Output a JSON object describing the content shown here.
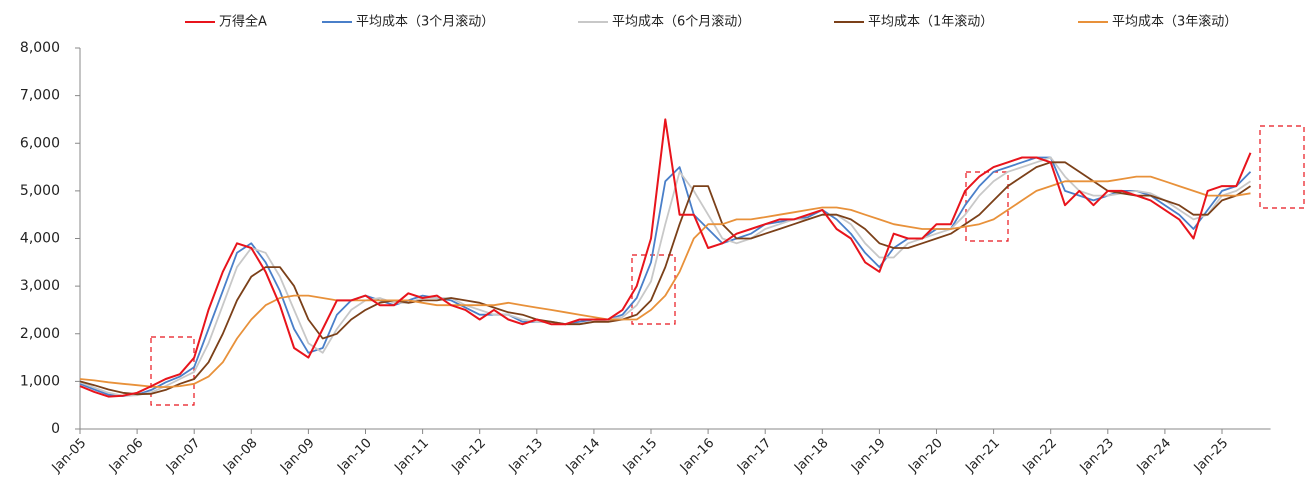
{
  "chart_data": {
    "type": "line",
    "categories": [
      "Jan-05",
      null,
      null,
      null,
      "Jan-06",
      null,
      null,
      null,
      "Jan-07",
      null,
      null,
      null,
      "Jan-08",
      null,
      null,
      null,
      "Jan-09",
      null,
      null,
      null,
      "Jan-10",
      null,
      null,
      null,
      "Jan-11",
      null,
      null,
      null,
      "Jan-12",
      null,
      null,
      null,
      "Jan-13",
      null,
      null,
      null,
      "Jan-14",
      null,
      null,
      null,
      "Jan-15",
      null,
      null,
      null,
      "Jan-16",
      null,
      null,
      null,
      "Jan-17",
      null,
      null,
      null,
      "Jan-18",
      null,
      null,
      null,
      "Jan-19",
      null,
      null,
      null,
      "Jan-20",
      null,
      null,
      null,
      "Jan-21",
      null,
      null,
      null,
      "Jan-22",
      null,
      null,
      null,
      "Jan-23",
      null,
      null,
      null,
      "Jan-24",
      null,
      null,
      null,
      "Jan-25",
      null,
      null
    ],
    "series": [
      {
        "name": "万得全A",
        "color": "#e8141c",
        "values": [
          900,
          780,
          680,
          700,
          760,
          900,
          1050,
          1150,
          1500,
          2500,
          3300,
          3900,
          3800,
          3300,
          2600,
          1700,
          1500,
          2100,
          2700,
          2700,
          2800,
          2600,
          2600,
          2850,
          2750,
          2800,
          2600,
          2500,
          2300,
          2500,
          2300,
          2200,
          2300,
          2200,
          2200,
          2300,
          2300,
          2300,
          2500,
          3000,
          4000,
          6500,
          4500,
          4500,
          3800,
          3900,
          4100,
          4200,
          4300,
          4400,
          4400,
          4500,
          4600,
          4200,
          4000,
          3500,
          3300,
          4100,
          4000,
          4000,
          4300,
          4300,
          5000,
          5300,
          5500,
          5600,
          5700,
          5700,
          5600,
          4700,
          5000,
          4700,
          5000,
          5000,
          4900,
          4800,
          4600,
          4400,
          4000,
          5000,
          5100,
          5100,
          5800
        ]
      },
      {
        "name": "平均成本（3个月滚动）",
        "color": "#4a7fc9",
        "values": [
          950,
          830,
          720,
          690,
          720,
          820,
          980,
          1100,
          1300,
          2100,
          2900,
          3700,
          3900,
          3500,
          2900,
          2100,
          1600,
          1700,
          2400,
          2700,
          2800,
          2700,
          2600,
          2700,
          2800,
          2750,
          2700,
          2550,
          2400,
          2400,
          2400,
          2250,
          2250,
          2250,
          2200,
          2250,
          2300,
          2300,
          2400,
          2750,
          3500,
          5200,
          5500,
          4500,
          4200,
          3900,
          4000,
          4100,
          4300,
          4350,
          4400,
          4450,
          4600,
          4400,
          4100,
          3700,
          3400,
          3800,
          4000,
          4000,
          4200,
          4200,
          4700,
          5100,
          5400,
          5500,
          5600,
          5700,
          5700,
          5000,
          4900,
          4800,
          4900,
          5000,
          5000,
          4900,
          4700,
          4500,
          4200,
          4600,
          5000,
          5100,
          5400
        ]
      },
      {
        "name": "平均成本（6个月滚动）",
        "color": "#c8c8c8",
        "values": [
          980,
          870,
          760,
          700,
          710,
          770,
          900,
          1050,
          1200,
          1800,
          2600,
          3400,
          3800,
          3700,
          3200,
          2500,
          1800,
          1600,
          2100,
          2500,
          2700,
          2750,
          2650,
          2650,
          2750,
          2750,
          2750,
          2600,
          2500,
          2400,
          2400,
          2300,
          2250,
          2250,
          2200,
          2200,
          2250,
          2300,
          2350,
          2600,
          3100,
          4300,
          5400,
          5000,
          4500,
          4000,
          3900,
          4000,
          4200,
          4300,
          4400,
          4400,
          4500,
          4500,
          4300,
          3900,
          3600,
          3600,
          3900,
          4000,
          4100,
          4200,
          4500,
          4900,
          5200,
          5400,
          5500,
          5600,
          5700,
          5300,
          5000,
          4900,
          4900,
          4950,
          5000,
          4950,
          4800,
          4600,
          4400,
          4500,
          4900,
          5000,
          5200
        ]
      },
      {
        "name": "平均成本（1年滚动）",
        "color": "#7b4019",
        "values": [
          1000,
          920,
          830,
          760,
          730,
          740,
          820,
          950,
          1050,
          1400,
          2000,
          2700,
          3200,
          3400,
          3400,
          3000,
          2300,
          1900,
          2000,
          2300,
          2500,
          2650,
          2700,
          2650,
          2700,
          2700,
          2750,
          2700,
          2650,
          2550,
          2450,
          2400,
          2300,
          2250,
          2200,
          2200,
          2250,
          2250,
          2300,
          2400,
          2700,
          3400,
          4300,
          5100,
          5100,
          4300,
          4000,
          4000,
          4100,
          4200,
          4300,
          4400,
          4500,
          4500,
          4400,
          4200,
          3900,
          3800,
          3800,
          3900,
          4000,
          4100,
          4300,
          4500,
          4800,
          5100,
          5300,
          5500,
          5600,
          5600,
          5400,
          5200,
          5000,
          4950,
          4900,
          4900,
          4800,
          4700,
          4500,
          4500,
          4800,
          4900,
          5100
        ]
      },
      {
        "name": "平均成本（3年滚动）",
        "color": "#e8913a",
        "values": [
          1050,
          1020,
          980,
          950,
          920,
          890,
          880,
          900,
          950,
          1100,
          1400,
          1900,
          2300,
          2600,
          2750,
          2800,
          2800,
          2750,
          2700,
          2700,
          2700,
          2700,
          2700,
          2700,
          2650,
          2600,
          2600,
          2600,
          2600,
          2600,
          2650,
          2600,
          2550,
          2500,
          2450,
          2400,
          2350,
          2300,
          2300,
          2300,
          2500,
          2800,
          3300,
          4000,
          4300,
          4300,
          4400,
          4400,
          4450,
          4500,
          4550,
          4600,
          4650,
          4650,
          4600,
          4500,
          4400,
          4300,
          4250,
          4200,
          4200,
          4200,
          4250,
          4300,
          4400,
          4600,
          4800,
          5000,
          5100,
          5200,
          5200,
          5200,
          5200,
          5250,
          5300,
          5300,
          5200,
          5100,
          5000,
          4900,
          4900,
          4900,
          4950
        ]
      }
    ],
    "ylim": [
      0,
      8000
    ],
    "yticks": [
      0,
      {
        "value": 1000,
        "label": "1,000"
      },
      {
        "value": 2000,
        "label": "2,000"
      },
      {
        "value": 3000,
        "label": "3,000"
      },
      {
        "value": 4000,
        "label": "4,000"
      },
      {
        "value": 5000,
        "label": "5,000"
      },
      {
        "value": 6000,
        "label": "6,000"
      },
      {
        "value": 7000,
        "label": "7,000"
      },
      {
        "value": 8000,
        "label": "8,000"
      }
    ],
    "legend": "top"
  }
}
